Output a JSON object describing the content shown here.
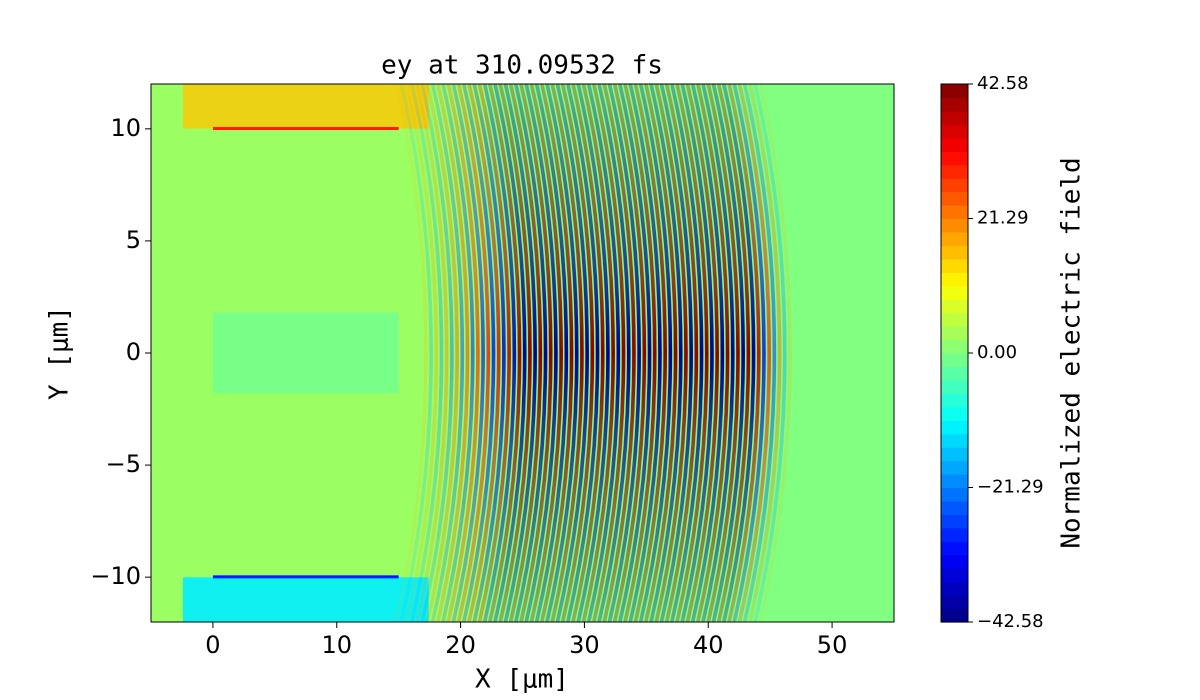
{
  "chart_data": {
    "type": "heatmap",
    "title": "ey at 310.09532 fs",
    "x_label": "X [μm]",
    "y_label": "Y [μm]",
    "xlim": [
      -5,
      55
    ],
    "ylim": [
      -12,
      12
    ],
    "xticks": [
      0,
      10,
      20,
      30,
      40,
      50
    ],
    "yticks": [
      {
        "value": -10,
        "label": "−10"
      },
      {
        "value": -5,
        "label": "−5"
      },
      0,
      5,
      10
    ],
    "colorbar": {
      "label": "Normalized electric field",
      "clim": [
        -42.58,
        42.58
      ],
      "colormap": "jet",
      "ticks": [
        {
          "value": -42.58,
          "label": "−42.58"
        },
        {
          "value": -21.29,
          "label": "−21.29"
        },
        {
          "value": 0,
          "label": "0.00"
        },
        21.29,
        42.58
      ]
    }
  }
}
